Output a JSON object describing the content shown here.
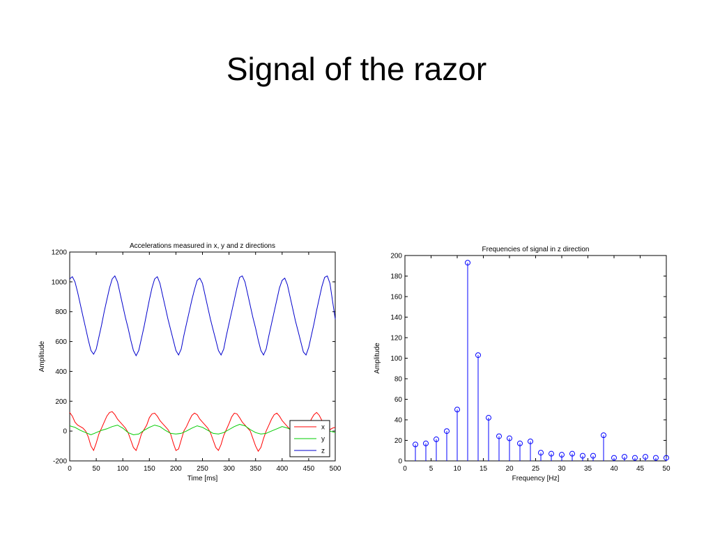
{
  "slide": {
    "title": "Signal of the razor"
  },
  "chart_data": [
    {
      "type": "line",
      "title": "Accelerations measured in x, y and z directions",
      "xlabel": "Time [ms]",
      "ylabel": "Amplitude",
      "xlim": [
        0,
        500
      ],
      "ylim": [
        -200,
        1200
      ],
      "xticks": [
        0,
        50,
        100,
        150,
        200,
        250,
        300,
        350,
        400,
        450,
        500
      ],
      "yticks": [
        -200,
        0,
        200,
        400,
        600,
        800,
        1000,
        1200
      ],
      "grid": false,
      "legend_position": "bottom-right",
      "series": [
        {
          "name": "x",
          "color": "#ff0000",
          "x": [
            0,
            5,
            10,
            15,
            20,
            25,
            30,
            35,
            40,
            45,
            50,
            55,
            60,
            65,
            70,
            75,
            80,
            85,
            90,
            95,
            100,
            105,
            110,
            115,
            120,
            125,
            130,
            135,
            140,
            145,
            150,
            155,
            160,
            165,
            170,
            175,
            180,
            185,
            190,
            195,
            200,
            205,
            210,
            215,
            220,
            225,
            230,
            235,
            240,
            245,
            250,
            255,
            260,
            265,
            270,
            275,
            280,
            285,
            290,
            295,
            300,
            305,
            310,
            315,
            320,
            325,
            330,
            335,
            340,
            345,
            350,
            355,
            360,
            365,
            370,
            375,
            380,
            385,
            390,
            395,
            400,
            405,
            410,
            415,
            420,
            425,
            430,
            435,
            440,
            445,
            450,
            455,
            460,
            465,
            470,
            475,
            480,
            485,
            490,
            495,
            500
          ],
          "y": [
            125,
            100,
            60,
            40,
            30,
            20,
            0,
            -40,
            -100,
            -130,
            -80,
            -20,
            20,
            60,
            100,
            125,
            130,
            110,
            80,
            60,
            40,
            20,
            -10,
            -60,
            -110,
            -130,
            -80,
            -20,
            10,
            40,
            90,
            115,
            120,
            100,
            70,
            50,
            30,
            10,
            -20,
            -80,
            -130,
            -120,
            -60,
            0,
            30,
            70,
            105,
            120,
            110,
            80,
            60,
            40,
            20,
            -10,
            -60,
            -110,
            -130,
            -90,
            -30,
            10,
            50,
            95,
            120,
            115,
            90,
            60,
            40,
            20,
            0,
            -50,
            -100,
            -135,
            -110,
            -50,
            0,
            40,
            80,
            110,
            120,
            100,
            70,
            50,
            30,
            10,
            -30,
            -80,
            -130,
            -120,
            -60,
            0,
            40,
            80,
            110,
            125,
            105,
            70,
            40,
            20,
            10,
            20,
            25
          ]
        },
        {
          "name": "y",
          "color": "#00cc00",
          "x": [
            0,
            10,
            20,
            30,
            40,
            50,
            60,
            70,
            80,
            90,
            100,
            110,
            120,
            130,
            140,
            150,
            160,
            170,
            180,
            190,
            200,
            210,
            220,
            230,
            240,
            250,
            260,
            270,
            280,
            290,
            300,
            310,
            320,
            330,
            340,
            350,
            360,
            370,
            380,
            390,
            400,
            410,
            420,
            430,
            440,
            450,
            460,
            470,
            480,
            490,
            500
          ],
          "y": [
            35,
            25,
            5,
            -10,
            -25,
            -10,
            5,
            15,
            30,
            40,
            20,
            -10,
            -25,
            -20,
            5,
            25,
            40,
            30,
            5,
            -15,
            -20,
            -15,
            0,
            20,
            35,
            25,
            5,
            -15,
            -20,
            -10,
            10,
            30,
            45,
            35,
            10,
            -10,
            -20,
            -15,
            0,
            15,
            30,
            20,
            5,
            -15,
            -25,
            -20,
            0,
            15,
            10,
            0,
            -10
          ]
        },
        {
          "name": "z",
          "color": "#0000cc",
          "x": [
            0,
            5,
            10,
            15,
            20,
            25,
            30,
            35,
            40,
            45,
            50,
            55,
            60,
            65,
            70,
            75,
            80,
            85,
            90,
            95,
            100,
            105,
            110,
            115,
            120,
            125,
            130,
            135,
            140,
            145,
            150,
            155,
            160,
            165,
            170,
            175,
            180,
            185,
            190,
            195,
            200,
            205,
            210,
            215,
            220,
            225,
            230,
            235,
            240,
            245,
            250,
            255,
            260,
            265,
            270,
            275,
            280,
            285,
            290,
            295,
            300,
            305,
            310,
            315,
            320,
            325,
            330,
            335,
            340,
            345,
            350,
            355,
            360,
            365,
            370,
            375,
            380,
            385,
            390,
            395,
            400,
            405,
            410,
            415,
            420,
            425,
            430,
            435,
            440,
            445,
            450,
            455,
            460,
            465,
            470,
            475,
            480,
            485,
            490,
            495,
            500
          ],
          "y": [
            1020,
            1035,
            1000,
            930,
            850,
            770,
            690,
            610,
            540,
            515,
            550,
            630,
            710,
            800,
            880,
            960,
            1020,
            1040,
            1000,
            920,
            840,
            760,
            690,
            610,
            540,
            505,
            540,
            620,
            700,
            790,
            880,
            960,
            1020,
            1035,
            990,
            910,
            830,
            750,
            680,
            610,
            540,
            510,
            550,
            640,
            720,
            800,
            880,
            950,
            1010,
            1025,
            990,
            910,
            830,
            750,
            680,
            610,
            540,
            510,
            550,
            640,
            720,
            800,
            880,
            960,
            1030,
            1040,
            1000,
            920,
            840,
            760,
            690,
            610,
            540,
            510,
            550,
            640,
            720,
            800,
            880,
            960,
            1010,
            1025,
            980,
            900,
            820,
            740,
            670,
            600,
            530,
            510,
            560,
            640,
            720,
            810,
            890,
            970,
            1030,
            1040,
            990,
            870,
            750
          ]
        }
      ]
    },
    {
      "type": "stem",
      "title": "Frequencies of signal in z direction",
      "xlabel": "Frequency [Hz]",
      "ylabel": "Amplitude",
      "xlim": [
        0,
        50
      ],
      "ylim": [
        0,
        200
      ],
      "xticks": [
        0,
        5,
        10,
        15,
        20,
        25,
        30,
        35,
        40,
        45,
        50
      ],
      "yticks": [
        0,
        20,
        40,
        60,
        80,
        100,
        120,
        140,
        160,
        180,
        200
      ],
      "grid": false,
      "color": "#0000ff",
      "x": [
        2,
        4,
        6,
        8,
        10,
        12,
        14,
        16,
        18,
        20,
        22,
        24,
        26,
        28,
        30,
        32,
        34,
        36,
        38,
        40,
        42,
        44,
        46,
        48,
        50
      ],
      "y": [
        16,
        17,
        21,
        29,
        50,
        193,
        103,
        42,
        24,
        22,
        17,
        19,
        8,
        7,
        6,
        7,
        5,
        5,
        25,
        3,
        4,
        3,
        4,
        3,
        3
      ]
    }
  ]
}
